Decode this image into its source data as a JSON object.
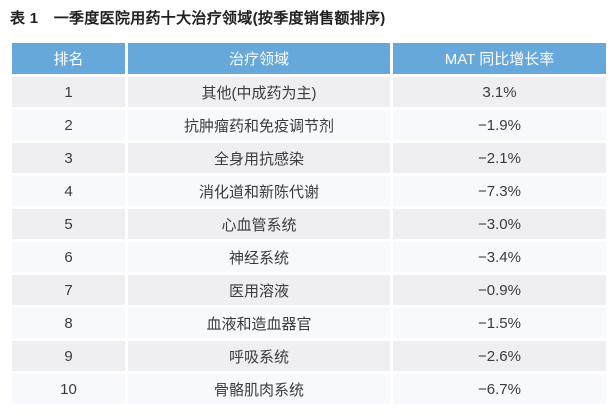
{
  "title": "表 1　一季度医院用药十大治疗领域(按季度销售额排序)",
  "colors": {
    "header_bg": "#66a8da",
    "header_text": "#ffffff",
    "row_odd_bg": "#efeff1",
    "row_even_bg": "#f8f9fc",
    "body_text": "#3b3b3b"
  },
  "table": {
    "headers": [
      "排名",
      "治疗领域",
      "MAT 同比增长率"
    ],
    "rows": [
      {
        "rank": "1",
        "area": "其他(中成药为主)",
        "growth": "3.1%"
      },
      {
        "rank": "2",
        "area": "抗肿瘤药和免疫调节剂",
        "growth": "−1.9%"
      },
      {
        "rank": "3",
        "area": "全身用抗感染",
        "growth": "−2.1%"
      },
      {
        "rank": "4",
        "area": "消化道和新陈代谢",
        "growth": "−7.3%"
      },
      {
        "rank": "5",
        "area": "心血管系统",
        "growth": "−3.0%"
      },
      {
        "rank": "6",
        "area": "神经系统",
        "growth": "−3.4%"
      },
      {
        "rank": "7",
        "area": "医用溶液",
        "growth": "−0.9%"
      },
      {
        "rank": "8",
        "area": "血液和造血器官",
        "growth": "−1.5%"
      },
      {
        "rank": "9",
        "area": "呼吸系统",
        "growth": "−2.6%"
      },
      {
        "rank": "10",
        "area": "骨骼肌肉系统",
        "growth": "−6.7%"
      }
    ]
  },
  "chart_data": {
    "type": "table",
    "title": "表 1　一季度医院用药十大治疗领域(按季度销售额排序)",
    "columns": [
      "排名",
      "治疗领域",
      "MAT 同比增长率"
    ],
    "rows": [
      [
        "1",
        "其他(中成药为主)",
        "3.1%"
      ],
      [
        "2",
        "抗肿瘤药和免疫调节剂",
        "−1.9%"
      ],
      [
        "3",
        "全身用抗感染",
        "−2.1%"
      ],
      [
        "4",
        "消化道和新陈代谢",
        "−7.3%"
      ],
      [
        "5",
        "心血管系统",
        "−3.0%"
      ],
      [
        "6",
        "神经系统",
        "−3.4%"
      ],
      [
        "7",
        "医用溶液",
        "−0.9%"
      ],
      [
        "8",
        "血液和造血器官",
        "−1.5%"
      ],
      [
        "9",
        "呼吸系统",
        "−2.6%"
      ],
      [
        "10",
        "骨骼肌肉系统",
        "−6.7%"
      ]
    ],
    "growth_values_pct": [
      3.1,
      -1.9,
      -2.1,
      -7.3,
      -3.0,
      -3.4,
      -0.9,
      -1.5,
      -2.6,
      -6.7
    ]
  }
}
